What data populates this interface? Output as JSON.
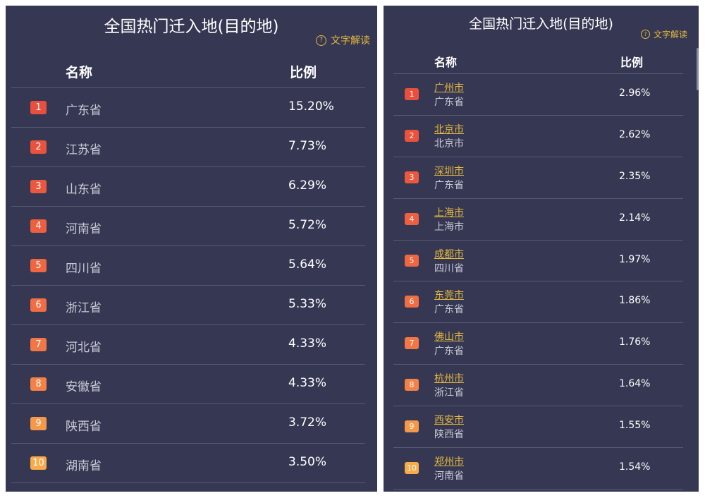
{
  "rank_colors": [
    "#ea4f3d",
    "#ea523d",
    "#ec583e",
    "#ee5f40",
    "#ef6641",
    "#f16d43",
    "#f37746",
    "#f48247",
    "#f5984a",
    "#f7ab4a"
  ],
  "left": {
    "title": "全国热门迁入地(目的地)",
    "explain": "文字解读",
    "help_icon_glyph": "?",
    "col_name": "名称",
    "col_ratio": "比例",
    "rows": [
      {
        "rank": "1",
        "name": "广东省",
        "ratio": "15.20%"
      },
      {
        "rank": "2",
        "name": "江苏省",
        "ratio": "7.73%"
      },
      {
        "rank": "3",
        "name": "山东省",
        "ratio": "6.29%"
      },
      {
        "rank": "4",
        "name": "河南省",
        "ratio": "5.72%"
      },
      {
        "rank": "5",
        "name": "四川省",
        "ratio": "5.64%"
      },
      {
        "rank": "6",
        "name": "浙江省",
        "ratio": "5.33%"
      },
      {
        "rank": "7",
        "name": "河北省",
        "ratio": "4.33%"
      },
      {
        "rank": "8",
        "name": "安徽省",
        "ratio": "4.33%"
      },
      {
        "rank": "9",
        "name": "陕西省",
        "ratio": "3.72%"
      },
      {
        "rank": "10",
        "name": "湖南省",
        "ratio": "3.50%"
      }
    ]
  },
  "right": {
    "title": "全国热门迁入地(目的地)",
    "explain": "文字解读",
    "help_icon_glyph": "?",
    "col_name": "名称",
    "col_ratio": "比例",
    "rows": [
      {
        "rank": "1",
        "city": "广州市",
        "province": "广东省",
        "ratio": "2.96%"
      },
      {
        "rank": "2",
        "city": "北京市",
        "province": "北京市",
        "ratio": "2.62%"
      },
      {
        "rank": "3",
        "city": "深圳市",
        "province": "广东省",
        "ratio": "2.35%"
      },
      {
        "rank": "4",
        "city": "上海市",
        "province": "上海市",
        "ratio": "2.14%"
      },
      {
        "rank": "5",
        "city": "成都市",
        "province": "四川省",
        "ratio": "1.97%"
      },
      {
        "rank": "6",
        "city": "东莞市",
        "province": "广东省",
        "ratio": "1.86%"
      },
      {
        "rank": "7",
        "city": "佛山市",
        "province": "广东省",
        "ratio": "1.76%"
      },
      {
        "rank": "8",
        "city": "杭州市",
        "province": "浙江省",
        "ratio": "1.64%"
      },
      {
        "rank": "9",
        "city": "西安市",
        "province": "陕西省",
        "ratio": "1.55%"
      },
      {
        "rank": "10",
        "city": "郑州市",
        "province": "河南省",
        "ratio": "1.54%"
      }
    ]
  }
}
